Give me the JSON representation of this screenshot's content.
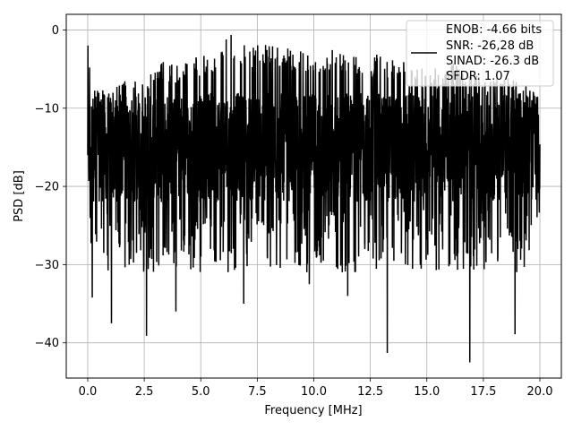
{
  "chart_data": {
    "type": "line",
    "xlabel": "Frequency [MHz]",
    "ylabel": "PSD [dB]",
    "xlim": [
      -0.95,
      20.95
    ],
    "ylim": [
      -44.5,
      2
    ],
    "grid": true,
    "x_ticks": [
      0.0,
      2.5,
      5.0,
      7.5,
      10.0,
      12.5,
      15.0,
      17.5,
      20.0
    ],
    "x_tick_labels": [
      "0.0",
      "2.5",
      "5.0",
      "7.5",
      "10.0",
      "12.5",
      "15.0",
      "17.5",
      "20.0"
    ],
    "y_ticks": [
      0,
      -10,
      -20,
      -30,
      -40
    ],
    "y_tick_labels": [
      "0",
      "−10",
      "−20",
      "−30",
      "−40"
    ],
    "legend": {
      "placement": "top-right",
      "entries": [
        "ENOB: -4.66 bits",
        "SNR: -26,28 dB",
        "SINAD: -26.3 dB",
        "SFDR: 1.07"
      ]
    },
    "series": [
      {
        "color": "#000000",
        "x_range": [
          0.0,
          20.0
        ],
        "envelope_max": [
          [
            0.0,
            -2.0
          ],
          [
            0.15,
            -4.5
          ],
          [
            0.4,
            -7.0
          ],
          [
            0.8,
            -7.5
          ],
          [
            1.5,
            -6.5
          ],
          [
            2.5,
            -6.0
          ],
          [
            3.3,
            -4.0
          ],
          [
            4.0,
            -4.5
          ],
          [
            5.0,
            -3.0
          ],
          [
            5.5,
            -3.5
          ],
          [
            6.3,
            -0.5
          ],
          [
            6.8,
            -2.0
          ],
          [
            8.0,
            -1.5
          ],
          [
            9.0,
            -2.5
          ],
          [
            10.0,
            -3.0
          ],
          [
            11.0,
            -2.0
          ],
          [
            12.0,
            -3.5
          ],
          [
            13.0,
            -3.0
          ],
          [
            14.0,
            -4.0
          ],
          [
            15.0,
            -5.0
          ],
          [
            16.0,
            -4.0
          ],
          [
            17.0,
            -5.5
          ],
          [
            18.0,
            -5.0
          ],
          [
            19.0,
            -6.5
          ],
          [
            20.0,
            -8.0
          ]
        ],
        "notable_minima": [
          [
            0.2,
            -34.2
          ],
          [
            1.05,
            -37.5
          ],
          [
            2.6,
            -39.1
          ],
          [
            3.9,
            -36.0
          ],
          [
            6.9,
            -35.0
          ],
          [
            9.8,
            -32.5
          ],
          [
            11.5,
            -34.0
          ],
          [
            13.25,
            -41.3
          ],
          [
            16.9,
            -42.5
          ],
          [
            18.9,
            -38.9
          ]
        ],
        "typical_floor": -27,
        "typical_band": [
          -22,
          -8
        ]
      }
    ]
  }
}
